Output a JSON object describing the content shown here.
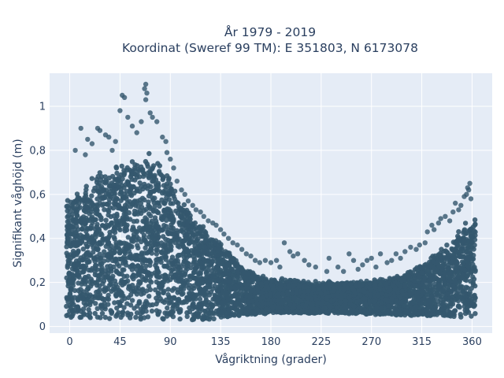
{
  "chart_data": {
    "type": "scatter",
    "title": "År 1979 - 2019",
    "subtitle": "Koordinat (Sweref 99 TM): E 351803, N 6173078",
    "xlabel": "Vågriktning (grader)",
    "ylabel": "Signifikant våghöjd (m)",
    "xlim": [
      -18,
      378
    ],
    "ylim": [
      -0.03,
      1.15
    ],
    "x_ticks": [
      0,
      45,
      90,
      135,
      180,
      225,
      270,
      315,
      360
    ],
    "x_tick_labels": [
      "0",
      "45",
      "90",
      "135",
      "180",
      "225",
      "270",
      "315",
      "360"
    ],
    "y_ticks": [
      0,
      0.2,
      0.4,
      0.6,
      0.8,
      1
    ],
    "y_tick_labels": [
      "0",
      "0,2",
      "0,4",
      "0,6",
      "0,8",
      "1"
    ],
    "grid": true,
    "marker_color": "#34586e",
    "plot_background": "#e5ecf6",
    "dense_band": {
      "x_range": [
        -3,
        363
      ],
      "y_min": [
        [
          0,
          0.04
        ],
        [
          60,
          0.03
        ],
        [
          120,
          0.03
        ],
        [
          180,
          0.06
        ],
        [
          240,
          0.06
        ],
        [
          300,
          0.05
        ],
        [
          360,
          0.04
        ]
      ],
      "y_max_envelope": [
        [
          0,
          0.58
        ],
        [
          10,
          0.62
        ],
        [
          20,
          0.66
        ],
        [
          30,
          0.7
        ],
        [
          45,
          0.72
        ],
        [
          60,
          0.75
        ],
        [
          70,
          0.78
        ],
        [
          80,
          0.72
        ],
        [
          90,
          0.66
        ],
        [
          100,
          0.56
        ],
        [
          110,
          0.5
        ],
        [
          120,
          0.45
        ],
        [
          130,
          0.4
        ],
        [
          140,
          0.35
        ],
        [
          150,
          0.3
        ],
        [
          160,
          0.25
        ],
        [
          175,
          0.22
        ],
        [
          200,
          0.21
        ],
        [
          225,
          0.2
        ],
        [
          250,
          0.2
        ],
        [
          270,
          0.21
        ],
        [
          290,
          0.22
        ],
        [
          305,
          0.25
        ],
        [
          315,
          0.28
        ],
        [
          325,
          0.32
        ],
        [
          335,
          0.36
        ],
        [
          345,
          0.4
        ],
        [
          355,
          0.46
        ],
        [
          360,
          0.48
        ]
      ]
    },
    "outliers": [
      {
        "x": 68,
        "y": 1.1
      },
      {
        "x": 67,
        "y": 1.08
      },
      {
        "x": 69,
        "y": 1.06
      },
      {
        "x": 68,
        "y": 1.03
      },
      {
        "x": 47,
        "y": 1.05
      },
      {
        "x": 49,
        "y": 1.04
      },
      {
        "x": 72,
        "y": 0.97
      },
      {
        "x": 74,
        "y": 0.95
      },
      {
        "x": 45,
        "y": 0.98
      },
      {
        "x": 78,
        "y": 0.93
      },
      {
        "x": 64,
        "y": 0.93
      },
      {
        "x": 56,
        "y": 0.91
      },
      {
        "x": 52,
        "y": 0.95
      },
      {
        "x": 10,
        "y": 0.9
      },
      {
        "x": 25,
        "y": 0.9
      },
      {
        "x": 27,
        "y": 0.89
      },
      {
        "x": 32,
        "y": 0.87
      },
      {
        "x": 16,
        "y": 0.85
      },
      {
        "x": 20,
        "y": 0.83
      },
      {
        "x": 35,
        "y": 0.86
      },
      {
        "x": 83,
        "y": 0.86
      },
      {
        "x": 86,
        "y": 0.84
      },
      {
        "x": 41,
        "y": 0.84
      },
      {
        "x": 60,
        "y": 0.88
      },
      {
        "x": 5,
        "y": 0.8
      },
      {
        "x": 14,
        "y": 0.78
      },
      {
        "x": 38,
        "y": 0.8
      },
      {
        "x": 87,
        "y": 0.79
      },
      {
        "x": 90,
        "y": 0.76
      },
      {
        "x": 93,
        "y": 0.72
      },
      {
        "x": 96,
        "y": 0.66
      },
      {
        "x": 100,
        "y": 0.62
      },
      {
        "x": 103,
        "y": 0.6
      },
      {
        "x": 106,
        "y": 0.57
      },
      {
        "x": 110,
        "y": 0.55
      },
      {
        "x": 113,
        "y": 0.53
      },
      {
        "x": 117,
        "y": 0.52
      },
      {
        "x": 120,
        "y": 0.5
      },
      {
        "x": 124,
        "y": 0.48
      },
      {
        "x": 128,
        "y": 0.47
      },
      {
        "x": 131,
        "y": 0.46
      },
      {
        "x": 135,
        "y": 0.44
      },
      {
        "x": 138,
        "y": 0.42
      },
      {
        "x": 142,
        "y": 0.4
      },
      {
        "x": 146,
        "y": 0.38
      },
      {
        "x": 150,
        "y": 0.37
      },
      {
        "x": 154,
        "y": 0.35
      },
      {
        "x": 158,
        "y": 0.33
      },
      {
        "x": 162,
        "y": 0.32
      },
      {
        "x": 166,
        "y": 0.3
      },
      {
        "x": 170,
        "y": 0.29
      },
      {
        "x": 175,
        "y": 0.3
      },
      {
        "x": 180,
        "y": 0.29
      },
      {
        "x": 185,
        "y": 0.3
      },
      {
        "x": 188,
        "y": 0.27
      },
      {
        "x": 192,
        "y": 0.38
      },
      {
        "x": 197,
        "y": 0.34
      },
      {
        "x": 200,
        "y": 0.32
      },
      {
        "x": 204,
        "y": 0.33
      },
      {
        "x": 210,
        "y": 0.3
      },
      {
        "x": 214,
        "y": 0.28
      },
      {
        "x": 220,
        "y": 0.27
      },
      {
        "x": 230,
        "y": 0.25
      },
      {
        "x": 232,
        "y": 0.31
      },
      {
        "x": 240,
        "y": 0.27
      },
      {
        "x": 245,
        "y": 0.25
      },
      {
        "x": 250,
        "y": 0.33
      },
      {
        "x": 254,
        "y": 0.3
      },
      {
        "x": 258,
        "y": 0.26
      },
      {
        "x": 262,
        "y": 0.28
      },
      {
        "x": 266,
        "y": 0.3
      },
      {
        "x": 270,
        "y": 0.31
      },
      {
        "x": 274,
        "y": 0.27
      },
      {
        "x": 278,
        "y": 0.33
      },
      {
        "x": 284,
        "y": 0.29
      },
      {
        "x": 288,
        "y": 0.3
      },
      {
        "x": 292,
        "y": 0.33
      },
      {
        "x": 296,
        "y": 0.31
      },
      {
        "x": 300,
        "y": 0.34
      },
      {
        "x": 305,
        "y": 0.36
      },
      {
        "x": 310,
        "y": 0.35
      },
      {
        "x": 313,
        "y": 0.37
      },
      {
        "x": 318,
        "y": 0.38
      },
      {
        "x": 320,
        "y": 0.43
      },
      {
        "x": 324,
        "y": 0.46
      },
      {
        "x": 326,
        "y": 0.44
      },
      {
        "x": 330,
        "y": 0.47
      },
      {
        "x": 332,
        "y": 0.49
      },
      {
        "x": 336,
        "y": 0.5
      },
      {
        "x": 340,
        "y": 0.48
      },
      {
        "x": 343,
        "y": 0.52
      },
      {
        "x": 345,
        "y": 0.56
      },
      {
        "x": 348,
        "y": 0.53
      },
      {
        "x": 350,
        "y": 0.55
      },
      {
        "x": 353,
        "y": 0.59
      },
      {
        "x": 355,
        "y": 0.6
      },
      {
        "x": 356,
        "y": 0.63
      },
      {
        "x": 357,
        "y": 0.62
      },
      {
        "x": 358,
        "y": 0.65
      },
      {
        "x": 359,
        "y": 0.58
      }
    ]
  }
}
